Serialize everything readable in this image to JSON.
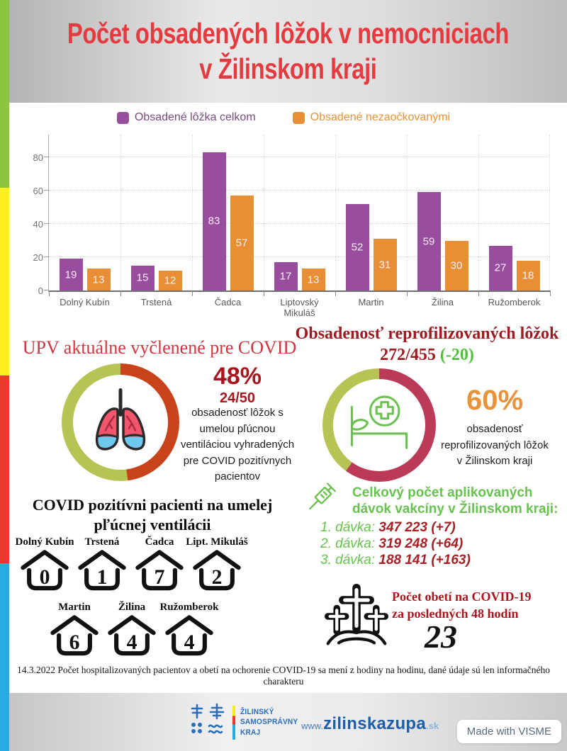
{
  "page": {
    "title_line1": "Počet obsadených lôžok v nemocniciach",
    "title_line2": "v Žilinskom kraji",
    "stripe_colors": [
      "#8cc63e",
      "#fdee21",
      "#e8392f",
      "#29abe2"
    ]
  },
  "legend": [
    {
      "label": "Obsadené lôžka celkom",
      "swatch": "#984d9e",
      "text_color": "#7b4a7e"
    },
    {
      "label": "Obsadené nezaočkovanými",
      "swatch": "#e88f35",
      "text_color": "#e8923a"
    }
  ],
  "chart_data": {
    "type": "bar",
    "categories": [
      "Dolný Kubín",
      "Trstená",
      "Čadca",
      "Liptovský Mikuláš",
      "Martin",
      "Žilina",
      "Ružomberok"
    ],
    "series": [
      {
        "name": "Obsadené lôžka celkom",
        "color": "#984d9e",
        "values": [
          19,
          15,
          83,
          17,
          52,
          59,
          27
        ]
      },
      {
        "name": "Obsadené nezaočkovanými",
        "color": "#e88f35",
        "values": [
          13,
          12,
          57,
          13,
          31,
          30,
          18
        ]
      }
    ],
    "ylim": [
      0,
      80
    ],
    "yticks": [
      0,
      20,
      40,
      60,
      80
    ],
    "grid": "dotted",
    "legend_position": "top"
  },
  "upv": {
    "title": "UPV aktuálne vyčlenené pre COVID",
    "percent": "48%",
    "fraction": "24/50",
    "description": "obsadenosť lôžok s umelou pľúcnou ventiláciou vyhradených pre COVID pozitívnych pacientov",
    "donut": {
      "value": 48,
      "fill_color": "#c8421b",
      "rest_color": "#b7c355"
    }
  },
  "reprofiled": {
    "title": "Obsadenosť reprofilizovaných lôžok",
    "fraction": "272/455",
    "delta": "(-20)",
    "percent": "60%",
    "description": "obsadenosť reprofilizovaných lôžok v Žilinskom kraji",
    "donut": {
      "value": 60,
      "fill_color": "#ba3a57",
      "rest_color": "#b7c355"
    }
  },
  "ventilated": {
    "title_line1": "COVID pozitívni pacienti na umelej",
    "title_line2": "pľúcnej ventilácii",
    "rows": [
      [
        {
          "city": "Dolný Kubín",
          "value": "0"
        },
        {
          "city": "Trstená",
          "value": "1"
        },
        {
          "city": "Čadca",
          "value": "7"
        },
        {
          "city": "Lipt. Mikuláš",
          "value": "2"
        }
      ],
      [
        {
          "city": "Martin",
          "value": "6"
        },
        {
          "city": "Žilina",
          "value": "4"
        },
        {
          "city": "Ružomberok",
          "value": "4"
        }
      ]
    ]
  },
  "vaccination": {
    "title_line1": "Celkový počet aplikovaných",
    "title_line2": "dávok vakcíny v Žilinskom kraji:",
    "doses": [
      {
        "label": "1. dávka:",
        "value": "347 223 (+7)"
      },
      {
        "label": "2. dávka:",
        "value": "319 248 (+64)"
      },
      {
        "label": "3. dávka:",
        "value": "188 141 (+163)"
      }
    ]
  },
  "deaths": {
    "title_line1": "Počet obetí na COVID-19",
    "title_line2": "za posledných 48 hodín",
    "count": "23"
  },
  "disclaimer": "14.3.2022 Počet hospitalizovaných pacientov a obetí na ochorenie COVID-19 sa mení z hodiny na hodinu, dané údaje sú len informačného charakteru",
  "footer": {
    "logo_lines": [
      "ŽILINSKÝ",
      "SAMOSPRÁVNY",
      "KRAJ"
    ],
    "website_prefix": "www.",
    "website_name": "zilinskazupa",
    "website_tld": ".sk",
    "badge": "Made with VISME"
  }
}
